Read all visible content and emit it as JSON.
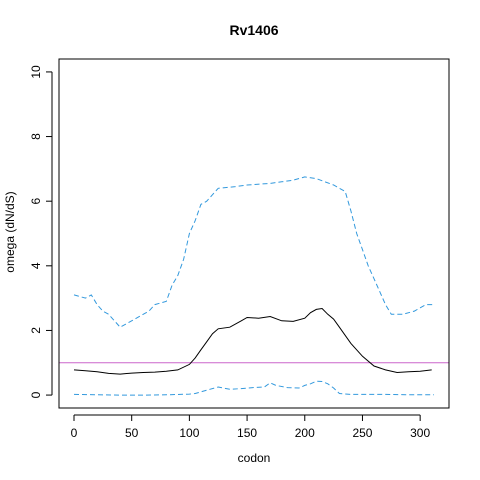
{
  "chart_data": {
    "type": "line",
    "title": "Rv1406",
    "xlabel": "codon",
    "ylabel": "omega (dN/dS)",
    "xlim": [
      -13,
      325
    ],
    "ylim": [
      -0.4,
      10.4
    ],
    "x_ticks": [
      0,
      50,
      100,
      150,
      200,
      250,
      300
    ],
    "y_ticks": [
      0,
      2,
      4,
      6,
      8,
      10
    ],
    "grid": false,
    "reference_line": {
      "y": 1,
      "color": "#cc66cc"
    },
    "series": [
      {
        "style": "solid",
        "color": "#000000",
        "points": [
          [
            0,
            0.78
          ],
          [
            10,
            0.75
          ],
          [
            20,
            0.72
          ],
          [
            30,
            0.67
          ],
          [
            40,
            0.65
          ],
          [
            50,
            0.68
          ],
          [
            60,
            0.7
          ],
          [
            70,
            0.71
          ],
          [
            80,
            0.74
          ],
          [
            90,
            0.78
          ],
          [
            100,
            0.95
          ],
          [
            105,
            1.15
          ],
          [
            110,
            1.4
          ],
          [
            115,
            1.65
          ],
          [
            120,
            1.9
          ],
          [
            125,
            2.05
          ],
          [
            135,
            2.1
          ],
          [
            145,
            2.3
          ],
          [
            150,
            2.4
          ],
          [
            160,
            2.38
          ],
          [
            170,
            2.43
          ],
          [
            180,
            2.3
          ],
          [
            190,
            2.28
          ],
          [
            200,
            2.38
          ],
          [
            205,
            2.55
          ],
          [
            210,
            2.65
          ],
          [
            215,
            2.68
          ],
          [
            220,
            2.5
          ],
          [
            225,
            2.35
          ],
          [
            230,
            2.1
          ],
          [
            240,
            1.6
          ],
          [
            250,
            1.2
          ],
          [
            260,
            0.9
          ],
          [
            270,
            0.78
          ],
          [
            280,
            0.7
          ],
          [
            290,
            0.72
          ],
          [
            300,
            0.74
          ],
          [
            310,
            0.78
          ]
        ]
      },
      {
        "style": "dashed",
        "color": "#3399dd",
        "points": [
          [
            0,
            3.1
          ],
          [
            10,
            3.0
          ],
          [
            15,
            3.1
          ],
          [
            20,
            2.8
          ],
          [
            25,
            2.6
          ],
          [
            30,
            2.5
          ],
          [
            35,
            2.3
          ],
          [
            40,
            2.1
          ],
          [
            50,
            2.3
          ],
          [
            60,
            2.5
          ],
          [
            65,
            2.6
          ],
          [
            70,
            2.8
          ],
          [
            80,
            2.9
          ],
          [
            85,
            3.4
          ],
          [
            90,
            3.7
          ],
          [
            95,
            4.2
          ],
          [
            100,
            5.0
          ],
          [
            105,
            5.4
          ],
          [
            110,
            5.9
          ],
          [
            115,
            6.0
          ],
          [
            120,
            6.2
          ],
          [
            125,
            6.4
          ],
          [
            140,
            6.45
          ],
          [
            150,
            6.5
          ],
          [
            170,
            6.55
          ],
          [
            180,
            6.6
          ],
          [
            190,
            6.65
          ],
          [
            200,
            6.75
          ],
          [
            210,
            6.7
          ],
          [
            225,
            6.5
          ],
          [
            235,
            6.3
          ],
          [
            240,
            5.7
          ],
          [
            245,
            5.0
          ],
          [
            250,
            4.5
          ],
          [
            255,
            4.0
          ],
          [
            260,
            3.6
          ],
          [
            265,
            3.2
          ],
          [
            270,
            2.8
          ],
          [
            275,
            2.5
          ],
          [
            285,
            2.5
          ],
          [
            295,
            2.6
          ],
          [
            300,
            2.7
          ],
          [
            305,
            2.8
          ],
          [
            312,
            2.8
          ]
        ]
      },
      {
        "style": "dashed",
        "color": "#3399dd",
        "points": [
          [
            0,
            0.02
          ],
          [
            20,
            0.01
          ],
          [
            40,
            0.0
          ],
          [
            60,
            0.0
          ],
          [
            80,
            0.01
          ],
          [
            100,
            0.03
          ],
          [
            105,
            0.05
          ],
          [
            115,
            0.15
          ],
          [
            125,
            0.25
          ],
          [
            135,
            0.18
          ],
          [
            145,
            0.2
          ],
          [
            155,
            0.23
          ],
          [
            165,
            0.25
          ],
          [
            170,
            0.38
          ],
          [
            175,
            0.3
          ],
          [
            185,
            0.23
          ],
          [
            195,
            0.22
          ],
          [
            200,
            0.3
          ],
          [
            205,
            0.35
          ],
          [
            210,
            0.43
          ],
          [
            215,
            0.42
          ],
          [
            220,
            0.35
          ],
          [
            225,
            0.22
          ],
          [
            230,
            0.05
          ],
          [
            240,
            0.02
          ],
          [
            270,
            0.02
          ],
          [
            290,
            0.01
          ],
          [
            312,
            0.01
          ]
        ]
      }
    ]
  }
}
